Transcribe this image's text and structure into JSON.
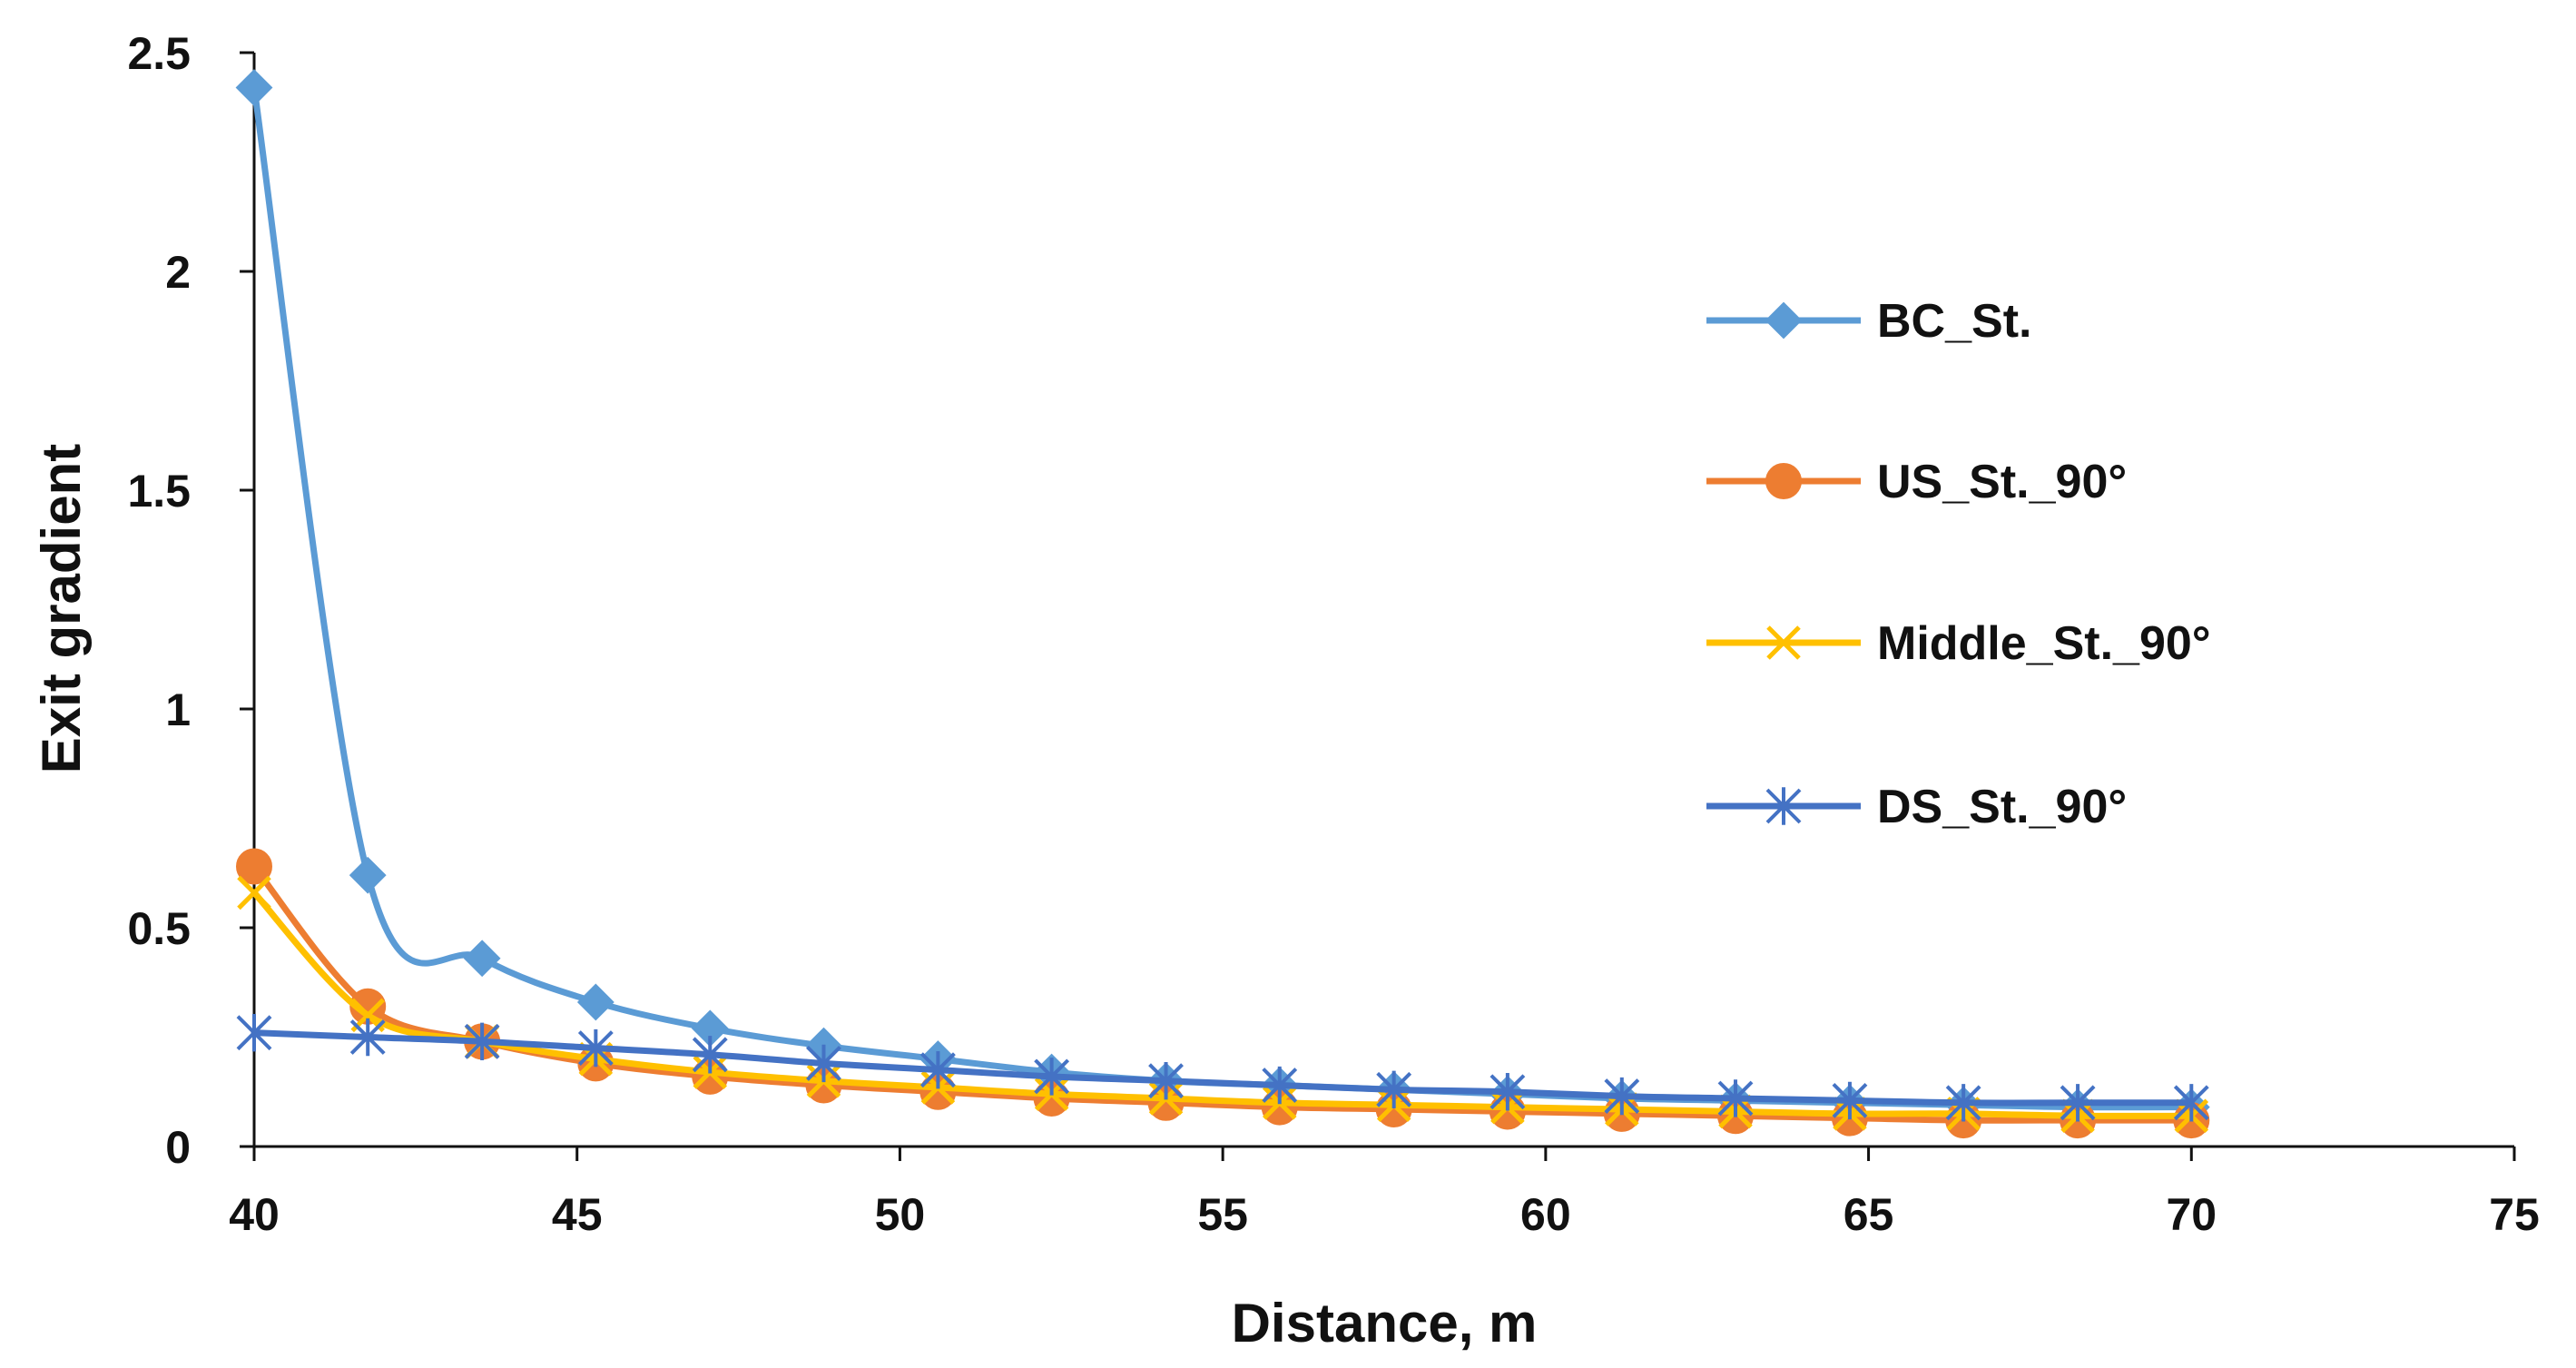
{
  "chart_data": {
    "type": "line",
    "title": "",
    "xlabel": "Distance, m",
    "ylabel": "Exit gradient",
    "xlim": [
      40,
      75
    ],
    "ylim": [
      0,
      2.5
    ],
    "x_ticks": [
      40,
      45,
      50,
      55,
      60,
      65,
      70,
      75
    ],
    "x_tick_labels": [
      "40",
      "45",
      "50",
      "55",
      "60",
      "65",
      "70",
      "75"
    ],
    "y_ticks": [
      0,
      0.5,
      1,
      1.5,
      2,
      2.5
    ],
    "y_tick_labels": [
      "0",
      "0.5",
      "1",
      "1.5",
      "2",
      "2.5"
    ],
    "grid": false,
    "legend_position": "right",
    "x": [
      40,
      41.76,
      43.53,
      45.29,
      47.06,
      48.82,
      50.59,
      52.35,
      54.12,
      55.88,
      57.65,
      59.41,
      61.18,
      62.94,
      64.71,
      66.47,
      68.24,
      70
    ],
    "series": [
      {
        "name": "BC_St.",
        "color": "#5B9BD5",
        "marker": "diamond",
        "values": [
          2.42,
          0.62,
          0.43,
          0.33,
          0.27,
          0.23,
          0.2,
          0.17,
          0.15,
          0.14,
          0.13,
          0.12,
          0.11,
          0.105,
          0.1,
          0.095,
          0.09,
          0.09
        ]
      },
      {
        "name": "US_St._90°",
        "color": "#ED7D31",
        "marker": "circle",
        "values": [
          0.64,
          0.32,
          0.24,
          0.19,
          0.16,
          0.14,
          0.125,
          0.11,
          0.1,
          0.09,
          0.085,
          0.08,
          0.075,
          0.07,
          0.065,
          0.06,
          0.06,
          0.06
        ]
      },
      {
        "name": "Middle_St._90°",
        "color": "#FFC000",
        "marker": "x",
        "values": [
          0.58,
          0.3,
          0.24,
          0.2,
          0.17,
          0.15,
          0.135,
          0.12,
          0.11,
          0.1,
          0.095,
          0.09,
          0.085,
          0.08,
          0.075,
          0.075,
          0.07,
          0.07
        ]
      },
      {
        "name": "DS_St._90°",
        "color": "#4472C4",
        "marker": "asterisk",
        "values": [
          0.26,
          0.25,
          0.24,
          0.225,
          0.21,
          0.19,
          0.175,
          0.16,
          0.15,
          0.14,
          0.13,
          0.125,
          0.115,
          0.11,
          0.105,
          0.1,
          0.1,
          0.1
        ]
      }
    ]
  }
}
